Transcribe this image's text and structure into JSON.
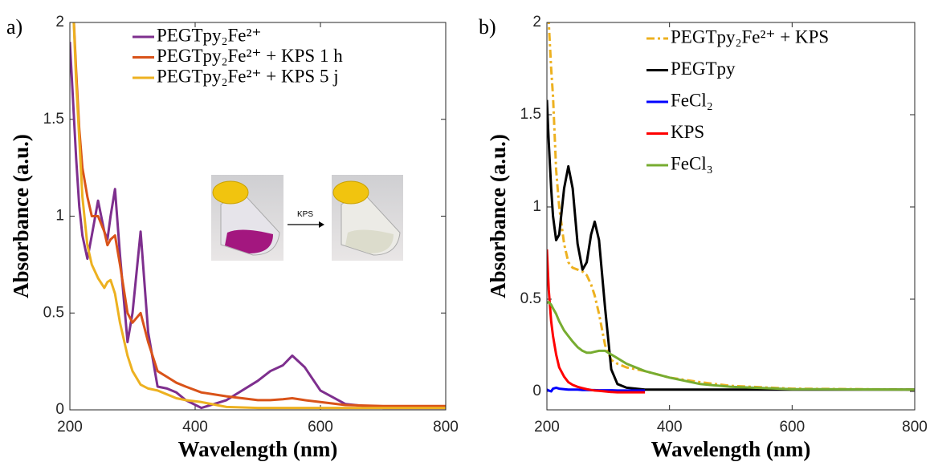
{
  "chart_data": [
    {
      "type": "line",
      "panel_label": "a)",
      "xlabel": "Wavelength (nm)",
      "ylabel": "Absorbance (a.u.)",
      "inset_label": "KPS",
      "legend": "upper left",
      "grid": false,
      "xlim": [
        200,
        800
      ],
      "xticks": [
        200,
        400,
        600,
        800
      ],
      "ylim": [
        0,
        2
      ],
      "yticks": [
        0,
        0.5,
        1,
        1.5,
        2
      ],
      "x": [
        200,
        205,
        210,
        215,
        220,
        228,
        235,
        245,
        255,
        260,
        265,
        272,
        280,
        292,
        300,
        313,
        325,
        340,
        355,
        370,
        385,
        410,
        450,
        500,
        520,
        540,
        555,
        575,
        600,
        640,
        700,
        800
      ],
      "series": [
        {
          "name": "PEGTpy₂Fe²⁺",
          "color": "#7e2f8e",
          "values": [
            1.9,
            1.6,
            1.3,
            1.05,
            0.9,
            0.78,
            0.9,
            1.08,
            0.92,
            0.88,
            1.0,
            1.14,
            0.8,
            0.35,
            0.5,
            0.92,
            0.4,
            0.12,
            0.11,
            0.09,
            0.05,
            0.01,
            0.05,
            0.15,
            0.2,
            0.23,
            0.28,
            0.22,
            0.1,
            0.03,
            0.01,
            0.01
          ]
        },
        {
          "name": "PEGTpy₂Fe²⁺ + KPS 1 h",
          "color": "#d95319",
          "values": [
            2.3,
            2.1,
            1.75,
            1.45,
            1.25,
            1.1,
            1.0,
            1.0,
            0.92,
            0.85,
            0.88,
            0.9,
            0.75,
            0.5,
            0.45,
            0.5,
            0.35,
            0.2,
            0.17,
            0.14,
            0.12,
            0.09,
            0.07,
            0.05,
            0.05,
            0.055,
            0.06,
            0.05,
            0.04,
            0.025,
            0.02,
            0.02
          ]
        },
        {
          "name": "PEGTpy₂Fe²⁺ + KPS 5 j",
          "color": "#edb120",
          "values": [
            2.3,
            2.1,
            1.7,
            1.4,
            1.1,
            0.85,
            0.75,
            0.68,
            0.63,
            0.66,
            0.67,
            0.6,
            0.45,
            0.28,
            0.2,
            0.13,
            0.11,
            0.1,
            0.08,
            0.06,
            0.05,
            0.04,
            0.015,
            0.01,
            0.01,
            0.01,
            0.01,
            0.01,
            0.01,
            0.01,
            0.01,
            0.01
          ]
        }
      ]
    },
    {
      "type": "line",
      "panel_label": "b)",
      "xlabel": "Wavelength (nm)",
      "ylabel": "Absorbance (a.u.)",
      "legend": "upper right",
      "grid": false,
      "xlim": [
        200,
        800
      ],
      "xticks": [
        200,
        400,
        600,
        800
      ],
      "ylim": [
        -0.1,
        2
      ],
      "yticks": [
        0,
        0.5,
        1,
        1.5,
        2
      ],
      "x": [
        200,
        203,
        207,
        210,
        215,
        220,
        228,
        235,
        242,
        250,
        258,
        265,
        272,
        278,
        285,
        295,
        305,
        315,
        330,
        360,
        400,
        450,
        500,
        600,
        800
      ],
      "series": [
        {
          "name": "PEGTpy₂Fe²⁺ + KPS",
          "color": "#edb120",
          "dash": "dashdot",
          "values": [
            2.4,
            2.0,
            1.75,
            1.6,
            1.2,
            1.0,
            0.8,
            0.7,
            0.67,
            0.66,
            0.65,
            0.63,
            0.58,
            0.52,
            0.42,
            0.25,
            0.17,
            0.15,
            0.13,
            0.11,
            0.075,
            0.05,
            0.03,
            0.015,
            0.01
          ]
        },
        {
          "name": "PEGTpy",
          "color": "#000000",
          "values": [
            1.58,
            1.35,
            1.1,
            0.95,
            0.82,
            0.85,
            1.1,
            1.22,
            1.1,
            0.8,
            0.66,
            0.7,
            0.85,
            0.92,
            0.82,
            0.45,
            0.12,
            0.04,
            0.02,
            0.01,
            0.01,
            0.01,
            0.01,
            0.01,
            0.01
          ]
        },
        {
          "name": "FeCl₂",
          "color": "#0000ff",
          "values": [
            0.01,
            0.005,
            0.0,
            0.015,
            0.02,
            0.015,
            0.012,
            0.01,
            0.01,
            0.01,
            0.008,
            0.008,
            0.007,
            0.007,
            0.006,
            0.006,
            0.006,
            0.005,
            0.005,
            0.005,
            null,
            null,
            null,
            null,
            null
          ]
        },
        {
          "name": "KPS",
          "color": "#ff0000",
          "values": [
            0.77,
            0.55,
            0.38,
            0.3,
            0.2,
            0.13,
            0.08,
            0.05,
            0.035,
            0.025,
            0.018,
            0.012,
            0.008,
            0.005,
            0.003,
            0.0,
            -0.003,
            -0.005,
            -0.005,
            -0.005,
            null,
            null,
            null,
            null,
            null
          ]
        },
        {
          "name": "FeCl₃",
          "color": "#77ac30",
          "values": [
            0.48,
            0.485,
            0.47,
            0.45,
            0.42,
            0.38,
            0.33,
            0.3,
            0.27,
            0.24,
            0.22,
            0.21,
            0.21,
            0.215,
            0.22,
            0.22,
            0.2,
            0.18,
            0.15,
            0.11,
            0.075,
            0.04,
            0.025,
            0.012,
            0.01
          ]
        }
      ]
    }
  ]
}
